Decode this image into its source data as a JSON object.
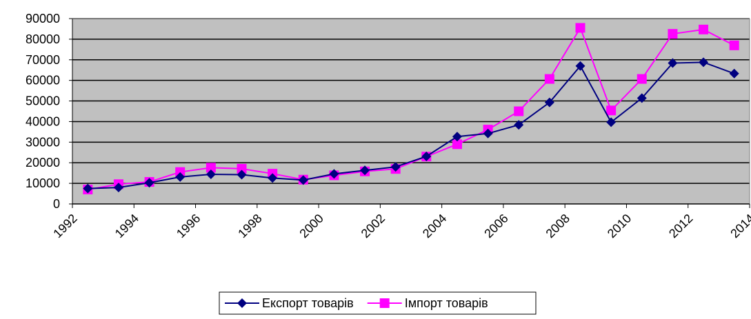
{
  "chart_data": {
    "type": "line",
    "x": [
      1992.5,
      1993.5,
      1994.5,
      1995.5,
      1996.5,
      1997.5,
      1998.5,
      1999.5,
      2000.5,
      2001.5,
      2002.5,
      2003.5,
      2004.5,
      2005.5,
      2006.5,
      2007.5,
      2008.5,
      2009.5,
      2010.5,
      2011.5,
      2012.5,
      2013.5
    ],
    "series": [
      {
        "name": "Експорт товарів",
        "color": "#000080",
        "marker": "diamond",
        "values": [
          7500,
          8000,
          10300,
          13100,
          14400,
          14200,
          12600,
          11600,
          14600,
          16300,
          18000,
          23100,
          32700,
          34200,
          38400,
          49300,
          67000,
          39700,
          51400,
          68400,
          68800,
          63300
        ]
      },
      {
        "name": "Імпорт товарів",
        "color": "#ff00ff",
        "marker": "square",
        "values": [
          7000,
          9600,
          10700,
          15500,
          17600,
          17100,
          14700,
          11800,
          13900,
          15800,
          17000,
          23000,
          29000,
          36100,
          45000,
          60700,
          85500,
          45400,
          60700,
          82600,
          84700,
          77000
        ]
      }
    ],
    "xlim": [
      1992,
      2014
    ],
    "xticks": [
      1992,
      1994,
      1996,
      1998,
      2000,
      2002,
      2004,
      2006,
      2008,
      2010,
      2012,
      2014
    ],
    "ylim": [
      0,
      90000
    ],
    "yticks": [
      0,
      10000,
      20000,
      30000,
      40000,
      50000,
      60000,
      70000,
      80000,
      90000
    ],
    "grid": true,
    "legend": "bottom"
  }
}
